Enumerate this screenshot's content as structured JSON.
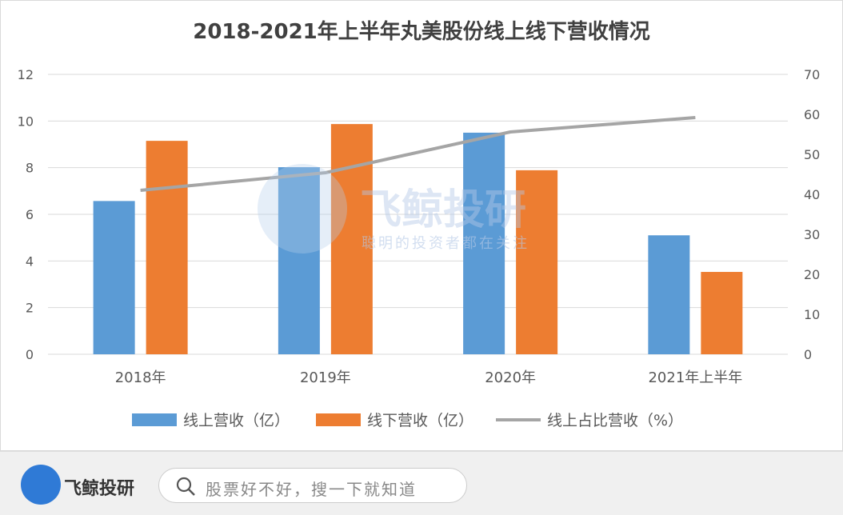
{
  "chart_data": {
    "type": "bar",
    "title": "2018-2021年上半年丸美股份线上线下营收情况",
    "categories": [
      "2018年",
      "2019年",
      "2020年",
      "2021年上半年"
    ],
    "series": [
      {
        "name": "线上营收（亿）",
        "type": "bar",
        "axis": "left",
        "color": "#5b9bd5",
        "values": [
          6.57,
          8.02,
          9.5,
          5.1
        ]
      },
      {
        "name": "线下营收（亿）",
        "type": "bar",
        "axis": "left",
        "color": "#ed7d31",
        "values": [
          9.15,
          9.87,
          7.89,
          3.53
        ]
      },
      {
        "name": "线上占比营收（%）",
        "type": "line",
        "axis": "right",
        "color": "#a5a5a5",
        "values": [
          41,
          45.4,
          55.6,
          59.2
        ]
      }
    ],
    "ylim": [
      0,
      12
    ],
    "yticks": [
      "0",
      "2",
      "4",
      "6",
      "8",
      "10",
      "12"
    ],
    "y2lim": [
      0,
      70
    ],
    "y2ticks": [
      "0",
      "10",
      "20",
      "30",
      "40",
      "50",
      "60",
      "70"
    ],
    "grid": true,
    "legend": "bottom"
  },
  "watermark": {
    "title": "飞鲸投研",
    "slogan": "聪明的投资者都在关注"
  },
  "footer": {
    "brand": "飞鲸投研",
    "search_placeholder": "股票好不好，搜一下就知道"
  }
}
